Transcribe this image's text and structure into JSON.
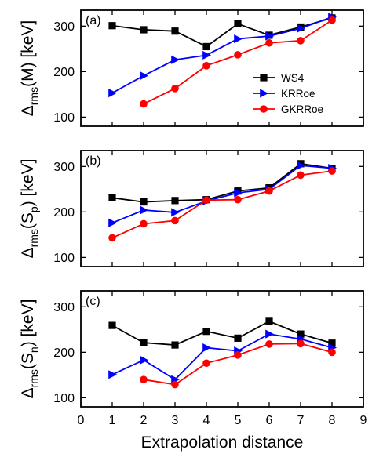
{
  "chart_data": [
    {
      "type": "line",
      "panel": "(a)",
      "ylabel_main": "Δ",
      "ylabel_sub": "rms",
      "ylabel_tail": "(M) [keV]",
      "ylim": [
        80,
        335
      ],
      "yticks": [
        100,
        200,
        300
      ],
      "xlim": [
        0,
        9
      ],
      "legend": {
        "placement": "right-middle",
        "entries": [
          "WS4",
          "KRRoe",
          "GKRRoe"
        ]
      },
      "series": [
        {
          "name": "WS4",
          "color": "#000000",
          "marker": "square",
          "x": [
            1,
            2,
            3,
            4,
            5,
            6,
            7,
            8
          ],
          "y": [
            301,
            292,
            289,
            255,
            305,
            280,
            298,
            318
          ]
        },
        {
          "name": "KRRoe",
          "color": "#0000ff",
          "marker": "triangle-right",
          "x": [
            1,
            2,
            3,
            4,
            5,
            6,
            7,
            8
          ],
          "y": [
            153,
            191,
            226,
            236,
            272,
            278,
            295,
            320
          ]
        },
        {
          "name": "GKRRoe",
          "color": "#ff0000",
          "marker": "circle",
          "x": [
            2,
            3,
            4,
            5,
            6,
            7,
            8
          ],
          "y": [
            129,
            163,
            213,
            237,
            263,
            268,
            313
          ]
        }
      ]
    },
    {
      "type": "line",
      "panel": "(b)",
      "ylabel_main": "Δ",
      "ylabel_sub": "rms",
      "ylabel_tail_pre": "(S",
      "ylabel_tail_sub": "p",
      "ylabel_tail": ") [keV]",
      "ylim": [
        80,
        335
      ],
      "yticks": [
        100,
        200,
        300
      ],
      "xlim": [
        0,
        9
      ],
      "series": [
        {
          "name": "WS4",
          "color": "#000000",
          "marker": "square",
          "x": [
            1,
            2,
            3,
            4,
            5,
            6,
            7,
            8
          ],
          "y": [
            231,
            222,
            225,
            227,
            246,
            253,
            306,
            296
          ]
        },
        {
          "name": "KRRoe",
          "color": "#0000ff",
          "marker": "triangle-right",
          "x": [
            1,
            2,
            3,
            4,
            5,
            6,
            7,
            8
          ],
          "y": [
            176,
            204,
            199,
            224,
            242,
            250,
            302,
            296
          ]
        },
        {
          "name": "GKRRoe",
          "color": "#ff0000",
          "marker": "circle",
          "x": [
            1,
            2,
            3,
            4,
            5,
            6,
            7,
            8
          ],
          "y": [
            143,
            174,
            181,
            226,
            227,
            246,
            281,
            290
          ]
        }
      ]
    },
    {
      "type": "line",
      "panel": "(c)",
      "ylabel_main": "Δ",
      "ylabel_sub": "rms",
      "ylabel_tail_pre": "(S",
      "ylabel_tail_sub": "n",
      "ylabel_tail": ") [keV]",
      "ylim": [
        80,
        335
      ],
      "yticks": [
        100,
        200,
        300
      ],
      "xlim": [
        0,
        9
      ],
      "xticks": [
        0,
        1,
        2,
        3,
        4,
        5,
        6,
        7,
        8,
        9
      ],
      "xlabel": "Extrapolation distance",
      "series": [
        {
          "name": "WS4",
          "color": "#000000",
          "marker": "square",
          "x": [
            1,
            2,
            3,
            4,
            5,
            6,
            7,
            8
          ],
          "y": [
            259,
            221,
            216,
            246,
            231,
            268,
            240,
            220
          ]
        },
        {
          "name": "KRRoe",
          "color": "#0000ff",
          "marker": "triangle-right",
          "x": [
            1,
            2,
            3,
            4,
            5,
            6,
            7,
            8
          ],
          "y": [
            151,
            183,
            140,
            210,
            203,
            240,
            229,
            210
          ]
        },
        {
          "name": "GKRRoe",
          "color": "#ff0000",
          "marker": "circle",
          "x": [
            2,
            3,
            4,
            5,
            6,
            7,
            8
          ],
          "y": [
            140,
            129,
            176,
            194,
            218,
            219,
            200
          ]
        }
      ]
    }
  ]
}
